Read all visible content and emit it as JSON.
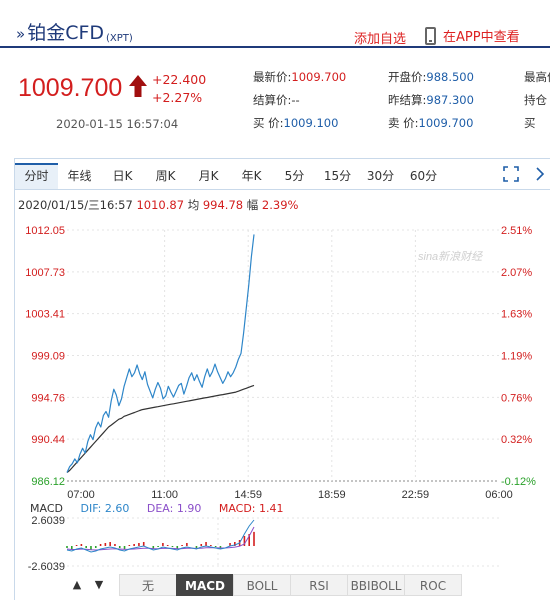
{
  "header": {
    "symbol_mark": "»",
    "title": "铂金CFD",
    "ticker": "(XPT)",
    "add_fav": "添加自选",
    "app_view": "在APP中查看"
  },
  "quote": {
    "price": "1009.700",
    "change": "+22.400",
    "change_pct": "+2.27%",
    "datetime": "2020-01-15 16:57:04",
    "col1": [
      {
        "k": "最新价:",
        "v": "1009.700",
        "c": "red"
      },
      {
        "k": "结算价:",
        "v": "--",
        "c": "plain"
      },
      {
        "k": "买  价:",
        "v": "1009.100",
        "c": "blue"
      }
    ],
    "col2": [
      {
        "k": "开盘价:",
        "v": "988.500",
        "c": "blue"
      },
      {
        "k": "昨结算:",
        "v": "987.300",
        "c": "blue"
      },
      {
        "k": "卖  价:",
        "v": "1009.700",
        "c": "blue"
      }
    ],
    "col3": [
      {
        "k": "最高价",
        "v": "",
        "c": "plain"
      },
      {
        "k": "持仓",
        "v": "",
        "c": "plain"
      },
      {
        "k": "买",
        "v": "",
        "c": "plain"
      }
    ]
  },
  "tabs": [
    "分时",
    "年线",
    "日K",
    "周K",
    "月K",
    "年K",
    "5分",
    "15分",
    "30分",
    "60分"
  ],
  "active_tab": 0,
  "info": {
    "time": "2020/01/15/三16:57",
    "price": "1010.87",
    "avg_label": "均",
    "avg": "994.78",
    "amp_label": "幅",
    "amp": "2.39%"
  },
  "watermark": "sina新浪财经",
  "macd": {
    "label": "MACD",
    "dif": "DIF: 2.60",
    "dea": "DEA: 1.90",
    "macd": "MACD: 1.41",
    "ytop": "2.6039",
    "ybot": "-2.6039"
  },
  "indicators": [
    "无",
    "MACD",
    "BOLL",
    "RSI",
    "BBIBOLL",
    "ROC"
  ],
  "active_indicator": 1,
  "colors": {
    "price_line": "#2e86c9",
    "avg_line": "#333333",
    "up": "#d31e1e",
    "down": "#2aa12a",
    "dif": "#2e86c9",
    "dea": "#8b4fc9",
    "macd": "#d31e1e"
  },
  "chart_data": {
    "type": "line",
    "ylim": [
      986.12,
      1012.05
    ],
    "y_ticks_left": [
      "1012.05",
      "1007.73",
      "1003.41",
      "999.09",
      "994.76",
      "990.44",
      "986.12"
    ],
    "y_ticks_right": [
      "2.51%",
      "2.07%",
      "1.63%",
      "1.19%",
      "0.76%",
      "0.32%",
      "-0.12%"
    ],
    "x_ticks": [
      "07:00",
      "11:00",
      "14:59",
      "18:59",
      "22:59",
      "06:00"
    ],
    "series": [
      {
        "values": [
          987.0,
          987.6,
          987.9,
          988.4,
          988.0,
          988.9,
          989.5,
          989.0,
          990.2,
          990.9,
          990.4,
          991.6,
          992.2,
          991.7,
          992.9,
          993.3,
          992.7,
          994.4,
          995.6,
          995.0,
          993.9,
          994.6,
          995.9,
          996.8,
          997.7,
          996.9,
          997.3,
          998.1,
          997.2,
          996.6,
          997.4,
          996.1,
          995.4,
          994.7,
          995.6,
          996.3,
          995.7,
          994.6,
          994.9,
          995.9,
          995.3,
          994.8,
          995.4,
          996.0,
          996.2,
          995.1,
          995.9,
          996.8,
          997.3,
          996.5,
          997.1,
          996.4,
          995.8,
          996.9,
          997.7,
          996.9,
          997.4,
          998.2,
          997.4,
          996.8,
          996.2,
          996.7,
          997.4,
          996.9,
          997.3,
          997.9,
          998.7,
          999.3,
          1001.4,
          1003.9,
          1006.4,
          1009.3,
          1011.6
        ]
      },
      {
        "values": [
          987.0,
          987.2,
          987.5,
          987.8,
          988.1,
          988.4,
          988.7,
          989.0,
          989.3,
          989.6,
          989.9,
          990.2,
          990.5,
          990.8,
          991.1,
          991.4,
          991.7,
          991.9,
          992.1,
          992.3,
          992.5,
          992.6,
          992.8,
          992.9,
          993.0,
          993.1,
          993.2,
          993.3,
          993.4,
          993.5,
          993.55,
          993.6,
          993.65,
          993.7,
          993.75,
          993.8,
          993.85,
          993.9,
          993.95,
          994.0,
          994.05,
          994.1,
          994.15,
          994.2,
          994.25,
          994.3,
          994.35,
          994.4,
          994.45,
          994.5,
          994.55,
          994.6,
          994.65,
          994.7,
          994.75,
          994.8,
          994.85,
          994.9,
          994.95,
          995.0,
          995.05,
          995.1,
          995.15,
          995.2,
          995.25,
          995.3,
          995.4,
          995.5,
          995.6,
          995.7,
          995.8,
          995.9,
          996.0
        ]
      }
    ],
    "macd_series": {
      "dif": [
        -0.4,
        -0.5,
        -0.3,
        -0.2,
        -0.4,
        -0.6,
        -0.5,
        -0.3,
        -0.2,
        -0.1,
        -0.2,
        -0.4,
        -0.5,
        -0.3,
        -0.2,
        -0.1,
        0.0,
        -0.2,
        -0.4,
        -0.3,
        -0.1,
        -0.2,
        -0.3,
        -0.4,
        -0.2,
        -0.1,
        -0.2,
        -0.3,
        -0.1,
        0.0,
        -0.1,
        -0.2,
        -0.3,
        -0.2,
        0.0,
        0.1,
        0.3,
        1.2,
        2.0,
        2.6
      ],
      "dea": [
        -0.3,
        -0.35,
        -0.35,
        -0.3,
        -0.32,
        -0.38,
        -0.4,
        -0.38,
        -0.34,
        -0.3,
        -0.28,
        -0.3,
        -0.34,
        -0.33,
        -0.3,
        -0.26,
        -0.22,
        -0.22,
        -0.26,
        -0.27,
        -0.24,
        -0.23,
        -0.24,
        -0.27,
        -0.26,
        -0.23,
        -0.22,
        -0.24,
        -0.22,
        -0.18,
        -0.16,
        -0.17,
        -0.2,
        -0.2,
        -0.16,
        -0.11,
        -0.02,
        0.2,
        1.0,
        1.9
      ],
      "hist": [
        -0.2,
        -0.3,
        0.1,
        0.2,
        -0.2,
        -0.4,
        -0.2,
        0.2,
        0.3,
        0.4,
        0.2,
        -0.2,
        -0.3,
        0.1,
        0.2,
        0.3,
        0.4,
        0.0,
        -0.3,
        -0.1,
        0.3,
        0.1,
        -0.1,
        -0.3,
        0.1,
        0.3,
        0.0,
        -0.2,
        0.2,
        0.4,
        0.1,
        -0.1,
        -0.2,
        0.0,
        0.3,
        0.4,
        0.6,
        1.0,
        1.2,
        1.41
      ]
    }
  }
}
